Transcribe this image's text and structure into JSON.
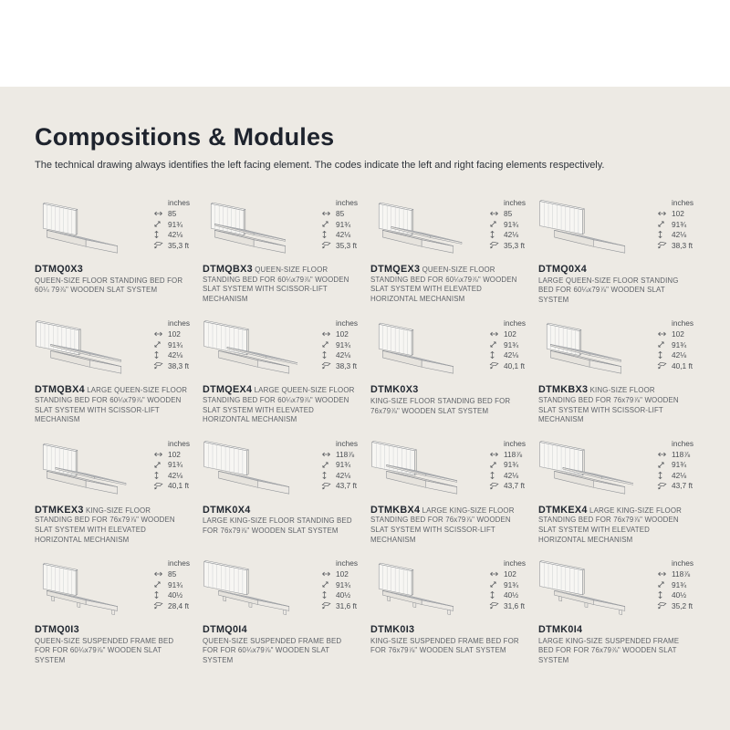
{
  "header": {
    "title": "Compositions & Modules",
    "subtitle": "The technical drawing always identifies the left facing element. The codes indicate the left and right facing elements respectively."
  },
  "specs_unit_label": "inches",
  "colors": {
    "section_background": "#EDEAE4",
    "page_background": "#FFFFFF",
    "heading_text": "#1E232D",
    "body_text": "#5E6268",
    "drawing_stroke": "#8F9296"
  },
  "icons": {
    "width": "double-horizontal-arrow-icon",
    "depth": "double-diagonal-arrow-icon",
    "height": "double-vertical-arrow-icon",
    "area": "floor-area-icon"
  },
  "cards": [
    {
      "code": "DTMQ0X3",
      "description": "QUEEN-SIZE FLOOR STANDING BED FOR 60¼ 79⅞\" WOODEN SLAT SYSTEM",
      "code_on_own_line": true,
      "drawing": {
        "type": "closed",
        "wide": false
      },
      "specs": {
        "width": "85",
        "depth": "91¾",
        "height": "42⅛",
        "area": "35,3 ft"
      }
    },
    {
      "code": "DTMQBX3",
      "description": "QUEEN-SIZE FLOOR STANDING BED FOR 60¼x79⅞\" WOODEN SLAT SYSTEM WITH SCISSOR-LIFT MECHANISM",
      "code_on_own_line": false,
      "drawing": {
        "type": "scissor",
        "wide": false
      },
      "specs": {
        "width": "85",
        "depth": "91¾",
        "height": "42⅛",
        "area": "35,3 ft"
      }
    },
    {
      "code": "DTMQEX3",
      "description": "QUEEN-SIZE FLOOR STANDING BED FOR 60¼x79⅞\" WOODEN SLAT SYSTEM WITH ELEVATED HORIZONTAL MECHANISM",
      "code_on_own_line": false,
      "drawing": {
        "type": "elevated",
        "wide": false
      },
      "specs": {
        "width": "85",
        "depth": "91¾",
        "height": "42⅛",
        "area": "35,3 ft"
      }
    },
    {
      "code": "DTMQ0X4",
      "description": "LARGE QUEEN-SIZE FLOOR STANDING BED FOR 60¼x79⅞\" WOODEN SLAT SYSTEM",
      "code_on_own_line": true,
      "drawing": {
        "type": "closed",
        "wide": true
      },
      "specs": {
        "width": "102",
        "depth": "91¾",
        "height": "42⅛",
        "area": "38,3 ft"
      }
    },
    {
      "code": "DTMQBX4",
      "description": "LARGE QUEEN-SIZE FLOOR STANDING BED FOR 60¼x79⅞\" WOODEN SLAT SYSTEM WITH SCISSOR-LIFT MECHANISM",
      "code_on_own_line": false,
      "drawing": {
        "type": "scissor",
        "wide": true
      },
      "specs": {
        "width": "102",
        "depth": "91¾",
        "height": "42⅛",
        "area": "38,3 ft"
      }
    },
    {
      "code": "DTMQEX4",
      "description": "LARGE QUEEN-SIZE FLOOR STANDING BED FOR 60¼x79⅞\" WOODEN SLAT SYSTEM WITH ELEVATED HORIZONTAL MECHANISM",
      "code_on_own_line": false,
      "drawing": {
        "type": "elevated",
        "wide": true
      },
      "specs": {
        "width": "102",
        "depth": "91¾",
        "height": "42⅛",
        "area": "38,3 ft"
      }
    },
    {
      "code": "DTMK0X3",
      "description": "KING-SIZE FLOOR STANDING BED FOR 76x79⅞\" WOODEN SLAT SYSTEM",
      "code_on_own_line": true,
      "drawing": {
        "type": "closed",
        "wide": false
      },
      "specs": {
        "width": "102",
        "depth": "91¾",
        "height": "42⅛",
        "area": "40,1 ft"
      }
    },
    {
      "code": "DTMKBX3",
      "description": "KING-SIZE FLOOR STANDING BED FOR 76x79⅞\" WOODEN SLAT SYSTEM WITH SCISSOR-LIFT MECHANISM",
      "code_on_own_line": false,
      "drawing": {
        "type": "scissor",
        "wide": false
      },
      "specs": {
        "width": "102",
        "depth": "91¾",
        "height": "42⅛",
        "area": "40,1 ft"
      }
    },
    {
      "code": "DTMKEX3",
      "description": "KING-SIZE FLOOR STANDING BED FOR 76x79⅞\" WOODEN SLAT SYSTEM WITH ELEVATED HORIZONTAL MECHANISM",
      "code_on_own_line": false,
      "drawing": {
        "type": "elevated",
        "wide": false
      },
      "specs": {
        "width": "102",
        "depth": "91¾",
        "height": "42⅛",
        "area": "40,1 ft"
      }
    },
    {
      "code": "DTMK0X4",
      "description": "LARGE KING-SIZE FLOOR STANDING BED FOR 76x79⅞\" WOODEN SLAT SYSTEM",
      "code_on_own_line": true,
      "drawing": {
        "type": "closed",
        "wide": true
      },
      "specs": {
        "width": "118⅞",
        "depth": "91¾",
        "height": "42⅛",
        "area": "43,7 ft"
      }
    },
    {
      "code": "DTMKBX4",
      "description": "LARGE KING-SIZE FLOOR STANDING BED FOR 76x79⅞\" WOODEN SLAT SYSTEM WITH SCISSOR-LIFT MECHANISM",
      "code_on_own_line": false,
      "drawing": {
        "type": "scissor",
        "wide": true
      },
      "specs": {
        "width": "118⅞",
        "depth": "91¾",
        "height": "42⅛",
        "area": "43,7 ft"
      }
    },
    {
      "code": "DTMKEX4",
      "description": "LARGE KING-SIZE FLOOR STANDING BED FOR 76x79⅞\" WOODEN SLAT SYSTEM WITH ELEVATED HORIZONTAL MECHANISM",
      "code_on_own_line": false,
      "drawing": {
        "type": "elevated",
        "wide": true
      },
      "specs": {
        "width": "118⅞",
        "depth": "91¾",
        "height": "42⅛",
        "area": "43,7 ft"
      }
    },
    {
      "code": "DTMQ0I3",
      "description": "QUEEN-SIZE SUSPENDED FRAME BED FOR FOR 60¼x79⅞\" WOODEN SLAT SYSTEM",
      "code_on_own_line": true,
      "drawing": {
        "type": "suspended",
        "wide": false
      },
      "specs": {
        "width": "85",
        "depth": "91¾",
        "height": "40½",
        "area": "28,4 ft"
      }
    },
    {
      "code": "DTMQ0I4",
      "description": "QUEEN-SIZE SUSPENDED FRAME BED FOR FOR 60¼x79⅞\" WOODEN SLAT SYSTEM",
      "code_on_own_line": true,
      "drawing": {
        "type": "suspended",
        "wide": true
      },
      "specs": {
        "width": "102",
        "depth": "91¾",
        "height": "40½",
        "area": "31,6 ft"
      }
    },
    {
      "code": "DTMK0I3",
      "description": "KING-SIZE SUSPENDED FRAME BED FOR FOR 76x79⅞\" WOODEN SLAT SYSTEM",
      "code_on_own_line": true,
      "drawing": {
        "type": "suspended",
        "wide": false
      },
      "specs": {
        "width": "102",
        "depth": "91¾",
        "height": "40½",
        "area": "31,6 ft"
      }
    },
    {
      "code": "DTMK0I4",
      "description": "LARGE KING-SIZE SUSPENDED FRAME BED FOR FOR 76x79⅞\" WOODEN SLAT SYSTEM",
      "code_on_own_line": true,
      "drawing": {
        "type": "suspended",
        "wide": true
      },
      "specs": {
        "width": "118⅞",
        "depth": "91¾",
        "height": "40½",
        "area": "35,2 ft"
      }
    }
  ]
}
